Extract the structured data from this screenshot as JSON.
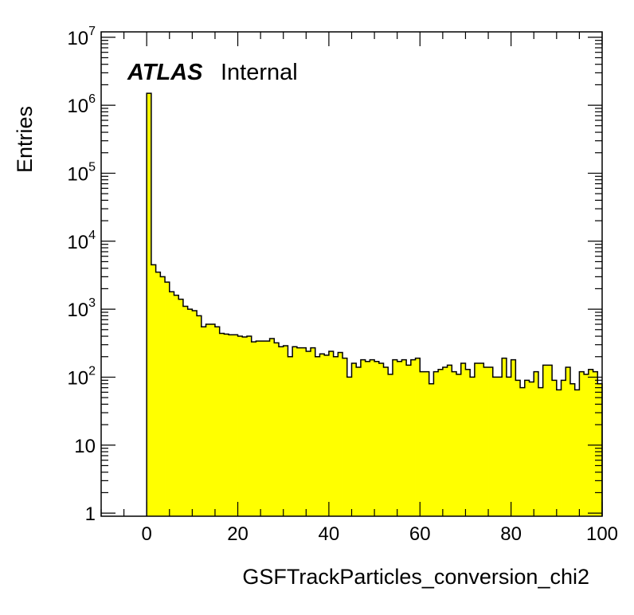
{
  "chart_data": {
    "type": "histogram",
    "xlabel": "GSFTrackParticles_conversion_chi2",
    "ylabel": "Entries",
    "xlim": [
      -10,
      100
    ],
    "ylim": [
      0.9,
      12000000
    ],
    "log_y": true,
    "grid": false,
    "fill_color": "#ffff00",
    "line_color": "#000000",
    "annotation": {
      "bold_italic": "ATLAS",
      "regular": "Internal"
    },
    "x_tick_labels": [
      "0",
      "20",
      "40",
      "60",
      "80",
      "100"
    ],
    "y_tick_labels": [
      {
        "base": "1",
        "exp": ""
      },
      {
        "base": "10",
        "exp": ""
      },
      {
        "base": "10",
        "exp": "2"
      },
      {
        "base": "10",
        "exp": "3"
      },
      {
        "base": "10",
        "exp": "4"
      },
      {
        "base": "10",
        "exp": "5"
      },
      {
        "base": "10",
        "exp": "6"
      },
      {
        "base": "10",
        "exp": "7"
      }
    ],
    "bin_width": 1,
    "bin_start": 0,
    "values": [
      1500000,
      4500,
      3500,
      3000,
      2500,
      1800,
      1600,
      1400,
      1100,
      1000,
      950,
      800,
      550,
      600,
      600,
      550,
      440,
      430,
      420,
      420,
      400,
      390,
      400,
      330,
      340,
      340,
      340,
      370,
      320,
      280,
      290,
      200,
      280,
      270,
      270,
      240,
      270,
      200,
      220,
      210,
      240,
      200,
      230,
      190,
      100,
      160,
      140,
      180,
      170,
      180,
      170,
      160,
      140,
      110,
      180,
      170,
      180,
      150,
      180,
      190,
      120,
      120,
      80,
      120,
      130,
      140,
      150,
      120,
      110,
      160,
      130,
      100,
      160,
      160,
      140,
      140,
      100,
      100,
      190,
      100,
      180,
      90,
      70,
      90,
      85,
      120,
      70,
      150,
      150,
      90,
      65,
      90,
      140,
      80,
      65,
      120,
      110,
      130,
      120,
      80
    ]
  }
}
